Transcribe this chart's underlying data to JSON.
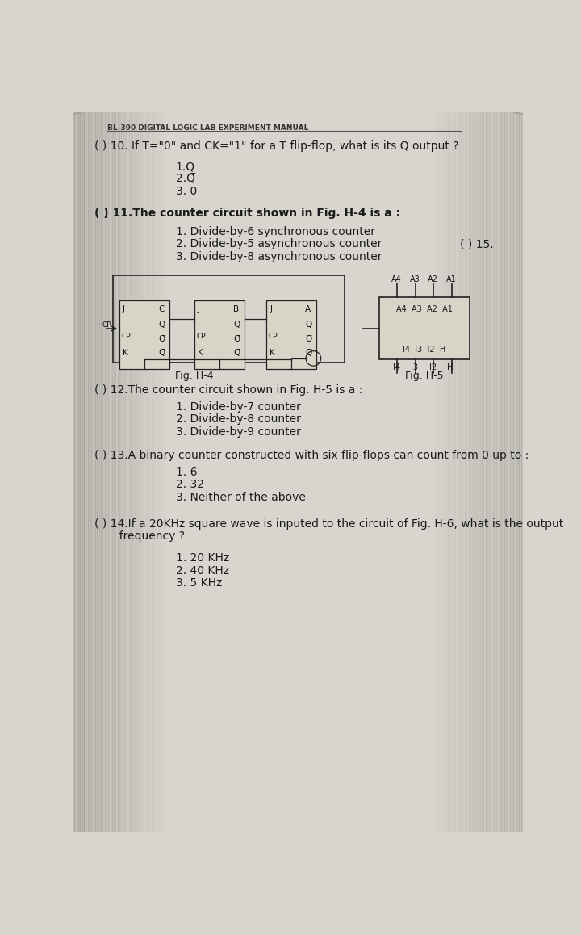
{
  "bg_color_center": "#d8d5ce",
  "bg_color_edge": "#a8a49c",
  "text_color": "#1a1a1a",
  "header_text": "EL-390 DIGITAL LOGIC LAB EXPERIMENT MANUAL",
  "header_small": "BL-390 DIGITAL LOGIC LAB EXPERIMENT MANUAL",
  "q10_line": "( ) 10. If T=\"0\" and CK=\"1\" for a T flip-flop, what is its Q output ?",
  "q10_a1": "1.Q",
  "q10_a2": "2.Q̅",
  "q10_a3": "3. 0",
  "q11_line": "( ) 11.The counter circuit shown in Fig. H-4 is a :",
  "q11_a1": "1. Divide-by-6 synchronous counter",
  "q11_a2": "2. Divide-by-5 asynchronous counter",
  "q11_a3": "3. Divide-by-8 asynchronous counter",
  "q15_partial": "( ) 15.",
  "fig_h4_label": "Fig. H-4",
  "fig_h5_label": "Fig. H-5",
  "q12_line": "( ) 12.The counter circuit shown in Fig. H-5 is a :",
  "q12_a1": "1. Divide-by-7 counter",
  "q12_a2": "2. Divide-by-8 counter",
  "q12_a3": "3. Divide-by-9 counter",
  "q13_line": "( ) 13.A binary counter constructed with six flip-flops can count from 0 up to :",
  "q13_a1": "1. 6",
  "q13_a2": "2. 32",
  "q13_a3": "3. Neither of the above",
  "q14_line1": "( ) 14.If a 20KHz square wave is inputed to the circuit of Fig. H-6, what is the output",
  "q14_line2": "       frequency ?",
  "q14_a1": "1. 20 KHz",
  "q14_a2": "2. 40 KHz",
  "q14_a3": "3. 5 KHz"
}
